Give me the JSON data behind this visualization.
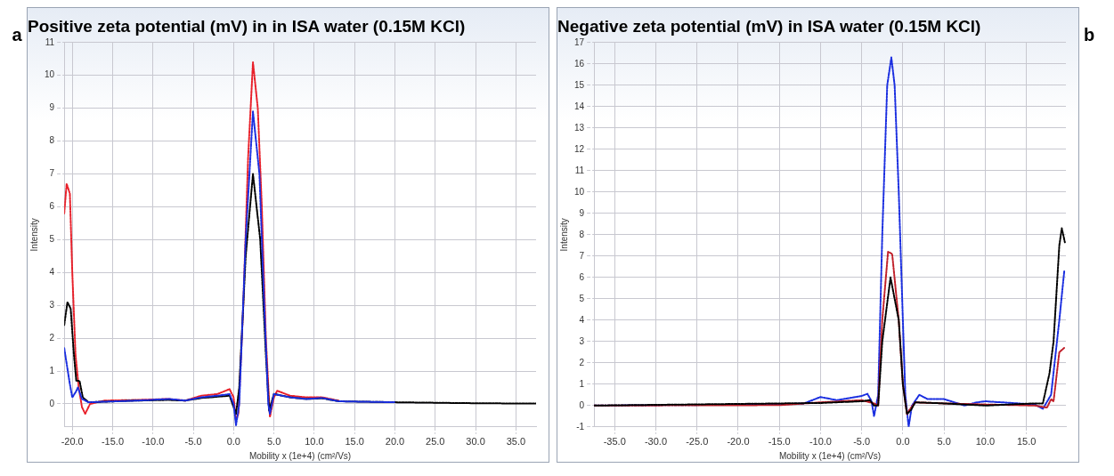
{
  "chart_data": [
    {
      "type": "line",
      "title": "Positive zeta potential (mV) in in ISA water (0.15M KCl)",
      "xlabel": "Mobility x (1e+4) (cm²/Vs)",
      "ylabel": "Intensity",
      "annotations": [
        "a"
      ],
      "grid": true,
      "legend": false,
      "marker": "none",
      "line_style": "dashed",
      "xlim": [
        -21,
        37.5
      ],
      "ylim": [
        -0.7,
        11
      ],
      "xticks": [
        {
          "value": -20,
          "label": "-20.0"
        },
        {
          "value": -15,
          "label": "-15.0"
        },
        {
          "value": -10,
          "label": "-10.0"
        },
        {
          "value": -5,
          "label": "-5.0"
        },
        {
          "value": 0,
          "label": "0.0"
        },
        {
          "value": 5,
          "label": "5.0"
        },
        {
          "value": 10,
          "label": "10.0"
        },
        {
          "value": 15,
          "label": "15.0"
        },
        {
          "value": 20,
          "label": "20.0"
        },
        {
          "value": 25,
          "label": "25.0"
        },
        {
          "value": 30,
          "label": "30.0"
        },
        {
          "value": 35,
          "label": "35.0"
        }
      ],
      "yticks": [
        0,
        1,
        2,
        3,
        4,
        5,
        6,
        7,
        8,
        9,
        10,
        11
      ],
      "series": [
        {
          "color": "#e8202a",
          "x": [
            -21,
            -20.7,
            -20.3,
            -20,
            -19.6,
            -19.2,
            -18.8,
            -18.4,
            -17.8,
            -16,
            -12,
            -8,
            -6,
            -4,
            -2,
            -0.5,
            0,
            0.3,
            0.6,
            1.2,
            1.8,
            2.4,
            3,
            3.5,
            4,
            4.5,
            5,
            5.4,
            7,
            9,
            11,
            13
          ],
          "values": [
            5.8,
            6.7,
            6.4,
            4,
            1.5,
            0.5,
            -0.1,
            -0.3,
            0,
            0.1,
            0.12,
            0.15,
            0.1,
            0.25,
            0.3,
            0.45,
            0.2,
            -0.5,
            -0.3,
            3,
            7.5,
            10.4,
            9,
            6,
            2,
            -0.4,
            0.2,
            0.4,
            0.25,
            0.2,
            0.2,
            0.1
          ]
        },
        {
          "color": "#000000",
          "x": [
            -21,
            -20.6,
            -20.2,
            -19.8,
            -19.5,
            -19.1,
            -18.7,
            -18,
            -12,
            -8,
            -6,
            -4,
            -2,
            -0.5,
            0,
            0.3,
            0.7,
            1.5,
            2.4,
            3.3,
            4,
            4.4,
            5,
            7,
            9,
            11,
            13,
            20,
            30,
            37.5
          ],
          "values": [
            2.4,
            3.1,
            2.9,
            1.5,
            0.7,
            0.7,
            0.2,
            0.05,
            0.1,
            0.12,
            0.1,
            0.18,
            0.22,
            0.25,
            -0.1,
            -0.3,
            0.5,
            4.5,
            7,
            5,
            1.5,
            -0.2,
            0.3,
            0.2,
            0.15,
            0.17,
            0.08,
            0.05,
            0.02,
            0.01
          ]
        },
        {
          "color": "#1a2ee0",
          "x": [
            -21,
            -20.3,
            -20,
            -19.6,
            -19.3,
            -18.8,
            -18,
            -12,
            -8,
            -6,
            -4,
            -2,
            -0.5,
            0,
            0.3,
            0.7,
            1.5,
            2.4,
            3.2,
            3.8,
            4.3,
            4.5,
            5,
            7,
            9,
            11,
            13,
            20
          ],
          "values": [
            1.7,
            0.6,
            0.2,
            0.35,
            0.5,
            0.15,
            0.05,
            0.1,
            0.15,
            0.1,
            0.2,
            0.25,
            0.3,
            0,
            -0.65,
            0,
            5,
            8.9,
            7,
            3,
            0,
            -0.3,
            0.3,
            0.2,
            0.15,
            0.18,
            0.08,
            0.05
          ]
        }
      ]
    },
    {
      "type": "line",
      "title": "Negative zeta potential (mV) in ISA water (0.15M KCl)",
      "xlabel": "Mobility x (1e+4) (cm²/Vs)",
      "ylabel": "Intensity",
      "annotations": [
        "b"
      ],
      "grid": true,
      "legend": false,
      "marker": "none",
      "line_style": "dashed",
      "xlim": [
        -37.5,
        19.8
      ],
      "ylim": [
        -1,
        17
      ],
      "xticks": [
        {
          "value": -35,
          "label": "-35.0"
        },
        {
          "value": -30,
          "label": "-30.0"
        },
        {
          "value": -25,
          "label": "-25.0"
        },
        {
          "value": -20,
          "label": "-20.0"
        },
        {
          "value": -15,
          "label": "-15.0"
        },
        {
          "value": -10,
          "label": "-10.0"
        },
        {
          "value": -5,
          "label": "-5.0"
        },
        {
          "value": 0,
          "label": "0.0"
        },
        {
          "value": 5,
          "label": "5.0"
        },
        {
          "value": 10,
          "label": "10.0"
        },
        {
          "value": 15,
          "label": "15.0"
        }
      ],
      "yticks": [
        -1,
        0,
        1,
        2,
        3,
        4,
        5,
        6,
        7,
        8,
        9,
        10,
        11,
        12,
        13,
        14,
        15,
        16,
        17
      ],
      "series": [
        {
          "color": "#1a2ee0",
          "x": [
            -37.5,
            -15,
            -12,
            -10,
            -8,
            -5,
            -4.3,
            -3.8,
            -3.5,
            -3,
            -2.5,
            -1.9,
            -1.4,
            -1,
            -0.5,
            0,
            0.3,
            0.7,
            1.1,
            2,
            3,
            5,
            7.5,
            9,
            10,
            12,
            16,
            17,
            18,
            19,
            19.6
          ],
          "values": [
            0,
            0.05,
            0.1,
            0.4,
            0.25,
            0.45,
            0.55,
            0.2,
            -0.5,
            0.5,
            8,
            15,
            16.3,
            15,
            10,
            4,
            0.5,
            -1,
            0,
            0.5,
            0.3,
            0.3,
            0,
            0.15,
            0.2,
            0.15,
            0.05,
            -0.15,
            0.5,
            4,
            6.3
          ]
        },
        {
          "color": "#c0202a",
          "x": [
            -37.5,
            -15,
            -10,
            -5,
            -3.5,
            -3,
            -2.5,
            -1.8,
            -1.3,
            -0.5,
            0,
            0.5,
            0.8,
            1.5,
            5,
            10,
            16,
            17.5,
            18,
            18.3,
            19,
            19.6
          ],
          "values": [
            0,
            0.02,
            0.15,
            0.25,
            0.1,
            0,
            4,
            7.2,
            7.1,
            4,
            1,
            -0.4,
            -0.2,
            0.15,
            0.1,
            0.05,
            0,
            -0.1,
            0.3,
            0.2,
            2.5,
            2.7
          ]
        },
        {
          "color": "#000000",
          "x": [
            -37.5,
            -10,
            -5,
            -4,
            -3.5,
            -3,
            -2.5,
            -1.5,
            -0.5,
            0,
            0.5,
            1,
            1.5,
            5,
            10,
            16,
            17,
            17.8,
            18.3,
            19,
            19.3,
            19.7
          ],
          "values": [
            0,
            0.12,
            0.2,
            0.25,
            0,
            0,
            3,
            6,
            4,
            1,
            -0.4,
            -0.2,
            0.15,
            0.1,
            0,
            0.1,
            0.1,
            1.5,
            3,
            7.5,
            8.3,
            7.6
          ]
        }
      ]
    }
  ]
}
